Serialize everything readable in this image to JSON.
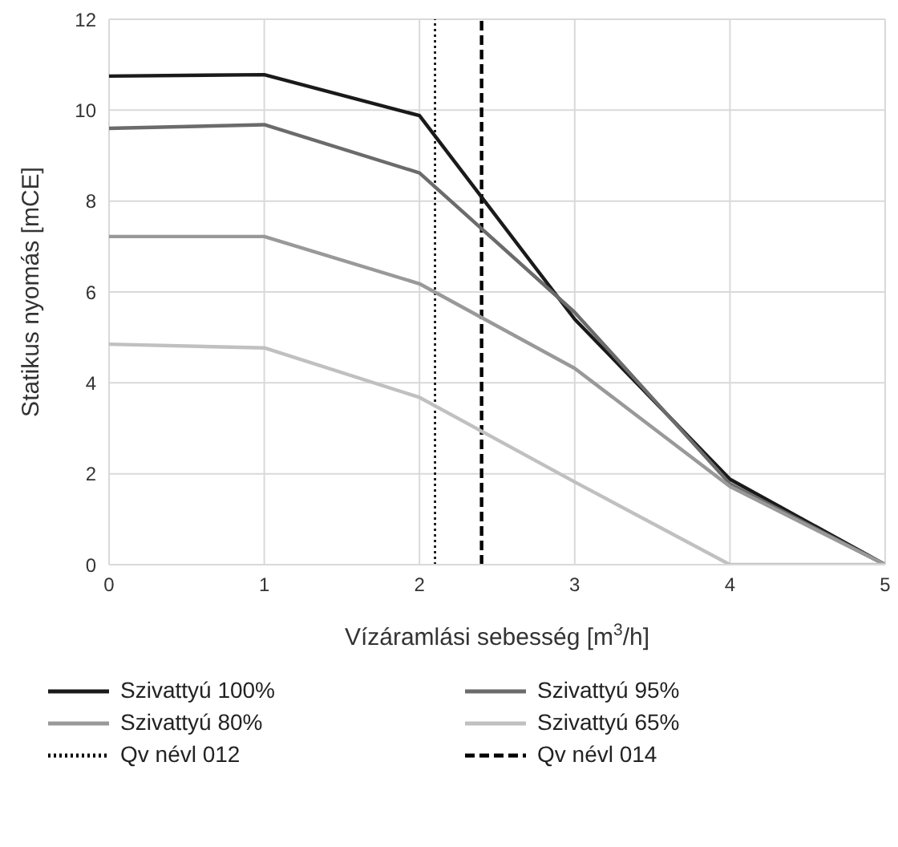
{
  "chart_data": {
    "type": "line",
    "xlabel": "Vízáramlási sebesség [m$^{3}$/h]",
    "ylabel": "Statikus nyomás [mCE]",
    "x": [
      0,
      1,
      2,
      3,
      4,
      5
    ],
    "xlim": [
      0,
      5
    ],
    "xticks": [
      0,
      1,
      2,
      3,
      4,
      5
    ],
    "ylim": [
      0,
      12
    ],
    "yticks": [
      0,
      2,
      4,
      6,
      8,
      10,
      12
    ],
    "grid": true,
    "legend": "bottom",
    "marker": "none",
    "line_style": "solid",
    "series": [
      {
        "name": "Szivattyú 100%",
        "color": "#1a1a1a",
        "values": [
          10.75,
          10.78,
          9.88,
          5.4,
          1.88,
          0
        ]
      },
      {
        "name": "Szivattyú 95%",
        "color": "#6b6b6b",
        "values": [
          9.6,
          9.68,
          8.62,
          5.55,
          1.78,
          0
        ]
      },
      {
        "name": "Szivattyú 80%",
        "color": "#999999",
        "values": [
          7.22,
          7.22,
          6.18,
          4.32,
          1.72,
          0
        ]
      },
      {
        "name": "Szivattyú 65%",
        "color": "#c0c0c0",
        "values": [
          4.85,
          4.77,
          3.68,
          1.82,
          0,
          0
        ]
      }
    ],
    "ref_lines": [
      {
        "axis": "x",
        "value": 2.1,
        "label": "Qv névl 012",
        "color": "#000000",
        "line_style": "dotted"
      },
      {
        "axis": "x",
        "value": 2.4,
        "label": "Qv névl 014",
        "color": "#000000",
        "line_style": "dashed"
      }
    ]
  }
}
